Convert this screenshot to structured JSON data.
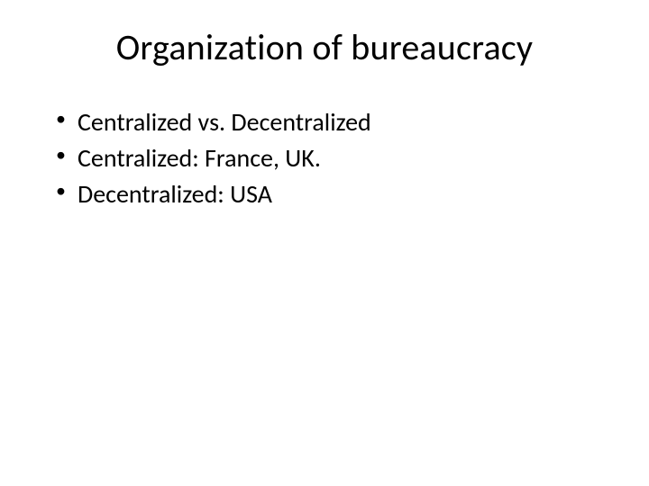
{
  "slide": {
    "background_color": "#ffffff",
    "title": {
      "text": "Organization of bureaucracy",
      "fontsize": 40,
      "color": "#000000",
      "align": "center"
    },
    "bullets": {
      "items": [
        {
          "text": "Centralized vs. Decentralized"
        },
        {
          "text": "Centralized: France, UK."
        },
        {
          "text": "Decentralized: USA"
        }
      ],
      "fontsize": 28,
      "color": "#000000",
      "marker": "•"
    }
  }
}
